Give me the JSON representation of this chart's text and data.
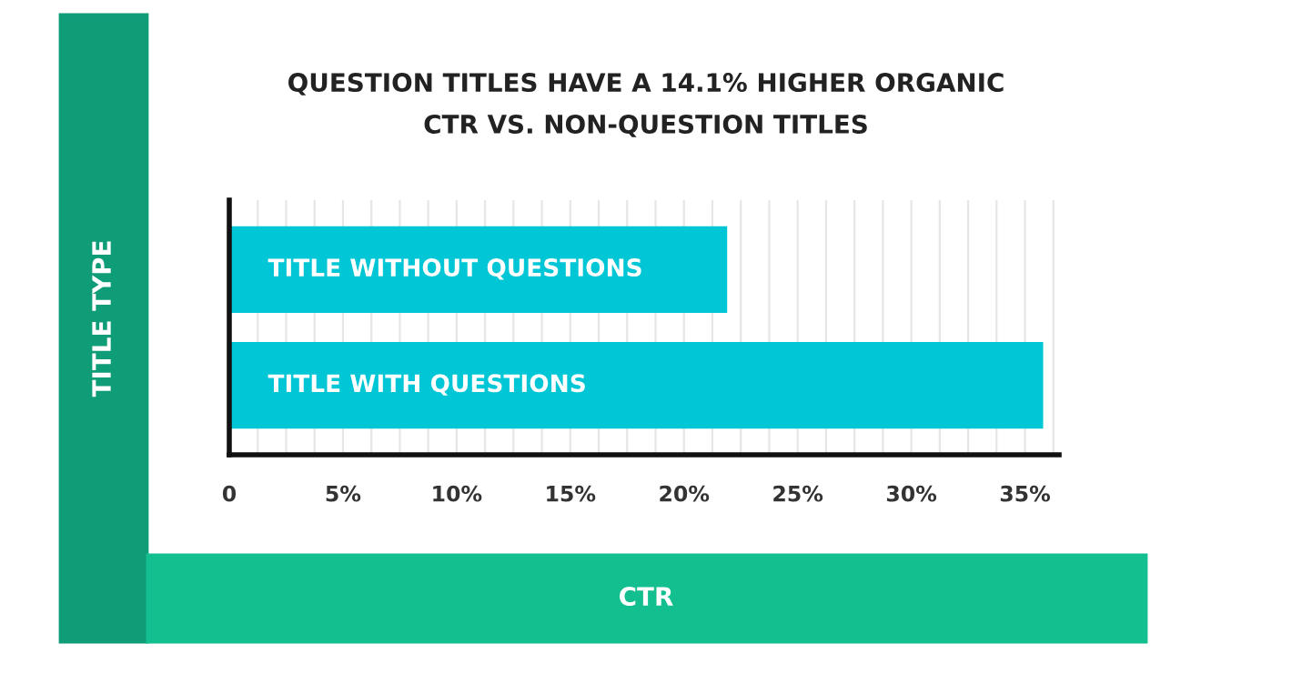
{
  "chart_data": {
    "type": "bar",
    "orientation": "horizontal",
    "title": "QUESTION TITLES HAVE A 14.1% HIGHER ORGANIC\nCTR VS. NON-QUESTION TITLES",
    "xlabel": "CTR",
    "ylabel": "TITLE TYPE",
    "categories": [
      "TITLE WITHOUT QUESTIONS",
      "TITLE WITH QUESTIONS"
    ],
    "values": [
      21.9,
      35.8
    ],
    "color": "#00c6d6",
    "xlim": [
      0,
      36.5
    ],
    "xticks": [
      {
        "value": 0,
        "label": "0"
      },
      {
        "value": 1.25,
        "label": null
      },
      {
        "value": 2.5,
        "label": null
      },
      {
        "value": 3.75,
        "label": null
      },
      {
        "value": 5,
        "label": "5%"
      },
      {
        "value": 6.25,
        "label": null
      },
      {
        "value": 7.5,
        "label": null
      },
      {
        "value": 8.75,
        "label": null
      },
      {
        "value": 10,
        "label": "10%"
      },
      {
        "value": 11.25,
        "label": null
      },
      {
        "value": 12.5,
        "label": null
      },
      {
        "value": 13.75,
        "label": null
      },
      {
        "value": 15,
        "label": "15%"
      },
      {
        "value": 16.25,
        "label": null
      },
      {
        "value": 17.5,
        "label": null
      },
      {
        "value": 18.75,
        "label": null
      },
      {
        "value": 20,
        "label": "20%"
      },
      {
        "value": 21.25,
        "label": null
      },
      {
        "value": 22.5,
        "label": null
      },
      {
        "value": 23.75,
        "label": null
      },
      {
        "value": 25,
        "label": "25%"
      },
      {
        "value": 26.25,
        "label": null
      },
      {
        "value": 27.5,
        "label": null
      },
      {
        "value": 28.75,
        "label": null
      },
      {
        "value": 30,
        "label": "30%"
      },
      {
        "value": 31.25,
        "label": null
      },
      {
        "value": 32.5,
        "label": null
      },
      {
        "value": 33.75,
        "label": null
      },
      {
        "value": 35,
        "label": "35%"
      },
      {
        "value": 36.25,
        "label": null
      }
    ],
    "grid": "x"
  }
}
